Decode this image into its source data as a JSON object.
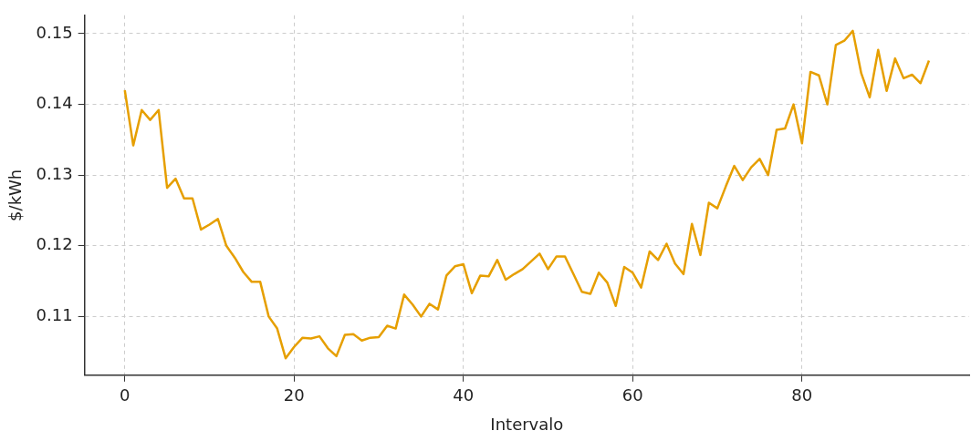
{
  "chart_data": {
    "type": "line",
    "xlabel": "Intervalo",
    "ylabel": "$/kWh",
    "x": [
      0,
      1,
      2,
      3,
      4,
      5,
      6,
      7,
      8,
      9,
      10,
      11,
      12,
      13,
      14,
      15,
      16,
      17,
      18,
      19,
      20,
      21,
      22,
      23,
      24,
      25,
      26,
      27,
      28,
      29,
      30,
      31,
      32,
      33,
      34,
      35,
      36,
      37,
      38,
      39,
      40,
      41,
      42,
      43,
      44,
      45,
      46,
      47,
      48,
      49,
      50,
      51,
      52,
      53,
      54,
      55,
      56,
      57,
      58,
      59,
      60,
      61,
      62,
      63,
      64,
      65,
      66,
      67,
      68,
      69,
      70,
      71,
      72,
      73,
      74,
      75,
      76,
      77,
      78,
      79,
      80,
      81,
      82,
      83,
      84,
      85,
      86,
      87,
      88,
      89,
      90,
      91,
      92,
      93,
      94,
      95
    ],
    "series": [
      {
        "color": "#e69f00",
        "values": [
          0.142,
          0.1342,
          0.1392,
          0.1378,
          0.1392,
          0.1282,
          0.1295,
          0.1267,
          0.1267,
          0.1223,
          0.123,
          0.1238,
          0.12,
          0.1183,
          0.1163,
          0.1149,
          0.1149,
          0.11,
          0.1083,
          0.1041,
          0.1057,
          0.107,
          0.1069,
          0.1072,
          0.1055,
          0.1044,
          0.1074,
          0.1075,
          0.1066,
          0.107,
          0.1071,
          0.1087,
          0.1083,
          0.1131,
          0.1117,
          0.11,
          0.1118,
          0.111,
          0.1158,
          0.1171,
          0.1174,
          0.1133,
          0.1158,
          0.1157,
          0.118,
          0.1152,
          0.116,
          0.1167,
          0.1178,
          0.1189,
          0.1167,
          0.1185,
          0.1185,
          0.116,
          0.1135,
          0.1132,
          0.1162,
          0.1148,
          0.1115,
          0.117,
          0.1162,
          0.1141,
          0.1192,
          0.118,
          0.1203,
          0.1175,
          0.116,
          0.1231,
          0.1187,
          0.1261,
          0.1253,
          0.1284,
          0.1313,
          0.1293,
          0.1311,
          0.1323,
          0.13,
          0.1364,
          0.1366,
          0.14,
          0.1345,
          0.1446,
          0.1441,
          0.14,
          0.1484,
          0.149,
          0.1504,
          0.1444,
          0.141,
          0.1477,
          0.1419,
          0.1465,
          0.1437,
          0.1442,
          0.143,
          0.1462
        ]
      }
    ],
    "xlim": [
      -4.75,
      99.75
    ],
    "ylim": [
      0.1017,
      0.1526
    ],
    "xticks": [
      0,
      20,
      40,
      60,
      80
    ],
    "yticks": [
      0.11,
      0.12,
      0.13,
      0.14,
      0.15
    ],
    "grid": true,
    "line_style": "solid"
  }
}
